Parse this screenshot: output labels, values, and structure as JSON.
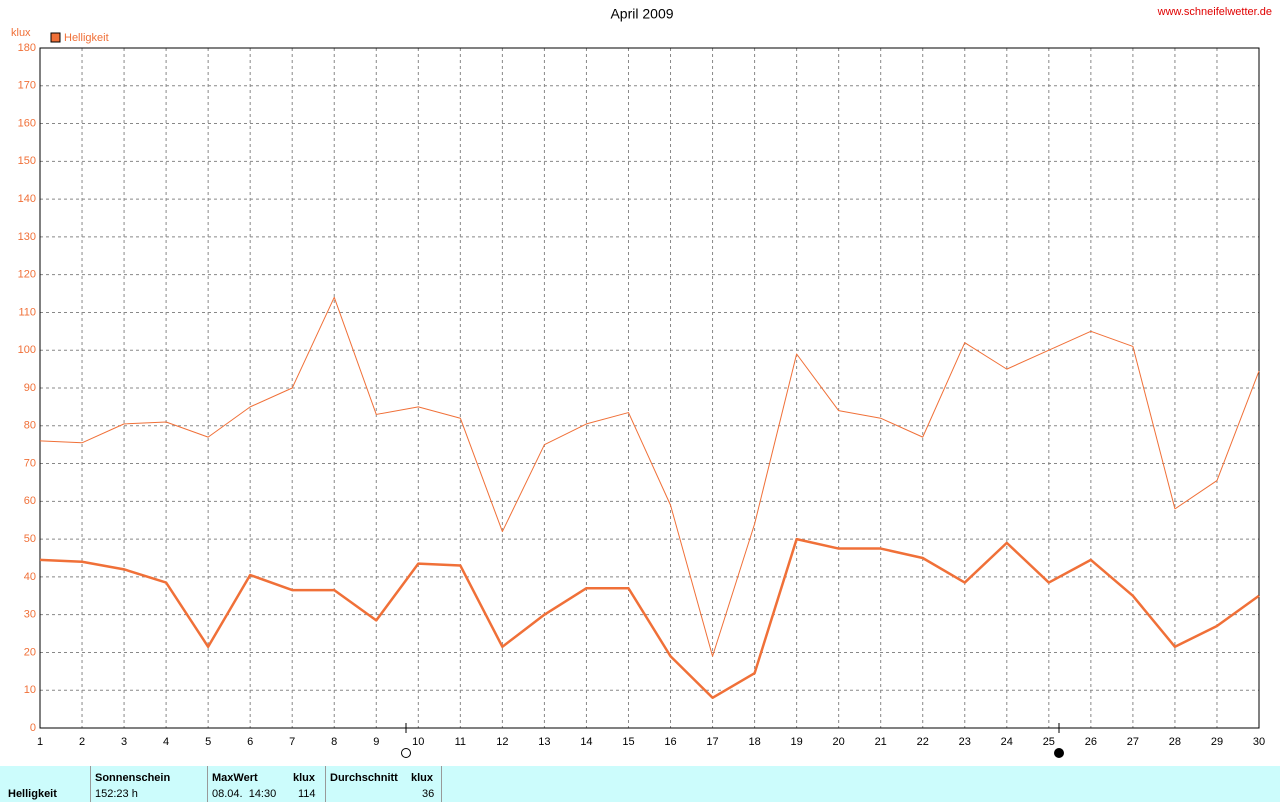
{
  "chart_data": {
    "type": "line",
    "title": "April 2009",
    "ylabel": "klux",
    "x": [
      1,
      2,
      3,
      4,
      5,
      6,
      7,
      8,
      9,
      10,
      11,
      12,
      13,
      14,
      15,
      16,
      17,
      18,
      19,
      20,
      21,
      22,
      23,
      24,
      25,
      26,
      27,
      28,
      29,
      30
    ],
    "series": [
      {
        "name": "Helligkeit",
        "color": "#f07038",
        "values": [
          44.5,
          44,
          42,
          38.5,
          21.5,
          40.5,
          36.5,
          36.5,
          28.5,
          43.5,
          43,
          21.5,
          30,
          37,
          37,
          19,
          8,
          14.5,
          50,
          47.5,
          47.5,
          45,
          38.5,
          49,
          38.5,
          44.5,
          35,
          21.5,
          27,
          35
        ]
      },
      {
        "color": "#f07038",
        "values": [
          76,
          75.5,
          80.5,
          81,
          77,
          85,
          90,
          114,
          83,
          85,
          82,
          52,
          75,
          80.5,
          83.5,
          59,
          19,
          54,
          99,
          84,
          82,
          77,
          102,
          95,
          100,
          105,
          101,
          58,
          65.5,
          94.5
        ]
      }
    ],
    "xlim": [
      1,
      30
    ],
    "xticks": [
      1,
      2,
      3,
      4,
      5,
      6,
      7,
      8,
      9,
      10,
      11,
      12,
      13,
      14,
      15,
      16,
      17,
      18,
      19,
      20,
      21,
      22,
      23,
      24,
      25,
      26,
      27,
      28,
      29,
      30
    ],
    "ylim": [
      0,
      180
    ],
    "yticks": [
      0,
      10,
      20,
      30,
      40,
      50,
      60,
      70,
      80,
      90,
      100,
      110,
      120,
      130,
      140,
      150,
      160,
      170,
      180
    ],
    "grid": true,
    "legend": "top-left"
  },
  "source": "www.schneifelwetter.de",
  "summary_table": {
    "row_label": "Helligkeit",
    "sunshine_header": "Sonnenschein",
    "sunshine": "152:23 h",
    "max_header": "MaxWert",
    "max_unit": "klux",
    "max_time": "08.04.  14:30",
    "max_value": "114",
    "avg_header": "Durchschnitt",
    "avg_unit": "klux",
    "avg_value": "36"
  }
}
